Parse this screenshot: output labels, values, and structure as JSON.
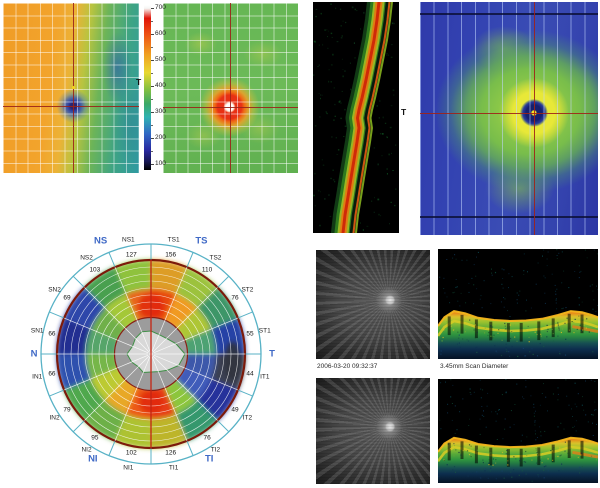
{
  "colorbar": {
    "tick_labels": [
      "700",
      "600",
      "500",
      "400",
      "300",
      "200",
      "100"
    ]
  },
  "markers": {
    "map_temporal": "T",
    "scan_temporal": "T"
  },
  "scan_info": {
    "timestamp": "2006-03-20 09:32:37",
    "scan_diameter_label": "3.45mm Scan Diameter"
  },
  "chart_data": {
    "type": "heatmap",
    "subtype": "polar-sector-thickness-map",
    "sectors": [
      {
        "name": "TS1",
        "value": 156
      },
      {
        "name": "TS2",
        "value": 110
      },
      {
        "name": "ST2",
        "value": 76
      },
      {
        "name": "ST1",
        "value": 55
      },
      {
        "name": "IT1",
        "value": 44
      },
      {
        "name": "IT2",
        "value": 49
      },
      {
        "name": "TI2",
        "value": 76
      },
      {
        "name": "TI1",
        "value": 126
      },
      {
        "name": "NI1",
        "value": 102
      },
      {
        "name": "NI2",
        "value": 95
      },
      {
        "name": "IN2",
        "value": 79
      },
      {
        "name": "IN1",
        "value": 66
      },
      {
        "name": "SN1",
        "value": 66
      },
      {
        "name": "SN2",
        "value": 69
      },
      {
        "name": "NS2",
        "value": 103
      },
      {
        "name": "NS1",
        "value": 127
      }
    ],
    "group_labels": [
      "NS",
      "TS",
      "T",
      "TI",
      "NI",
      "N"
    ],
    "colorbar_ticks": [
      700,
      600,
      500,
      400,
      300,
      200,
      100
    ]
  },
  "colors": {
    "group_label_blue": "#3f69c6",
    "crosshair_red": "#9a2418",
    "polar_ring_cyan": "#58b2c6",
    "polar_rim_darkred": "#7c1a0a",
    "sector_inner": [
      "#e8480f",
      "#f09a22",
      "#aec636",
      "#4da273",
      "#3d58aa",
      "#3f5cba",
      "#8cc63e",
      "#e63c12",
      "#ec5a16",
      "#e8a826",
      "#bcca32",
      "#76b648",
      "#57a56a",
      "#6fb048",
      "#a4c838",
      "#e8661c"
    ],
    "sector_outer": [
      "#dd9d26",
      "#9cc23c",
      "#3e9667",
      "#2643a6",
      "#3b4153",
      "#28309b",
      "#35986d",
      "#bdb52c",
      "#adc232",
      "#6db046",
      "#4fa84e",
      "#2d51ae",
      "#212d91",
      "#2d47aa",
      "#4aa050",
      "#8fc23e"
    ]
  }
}
